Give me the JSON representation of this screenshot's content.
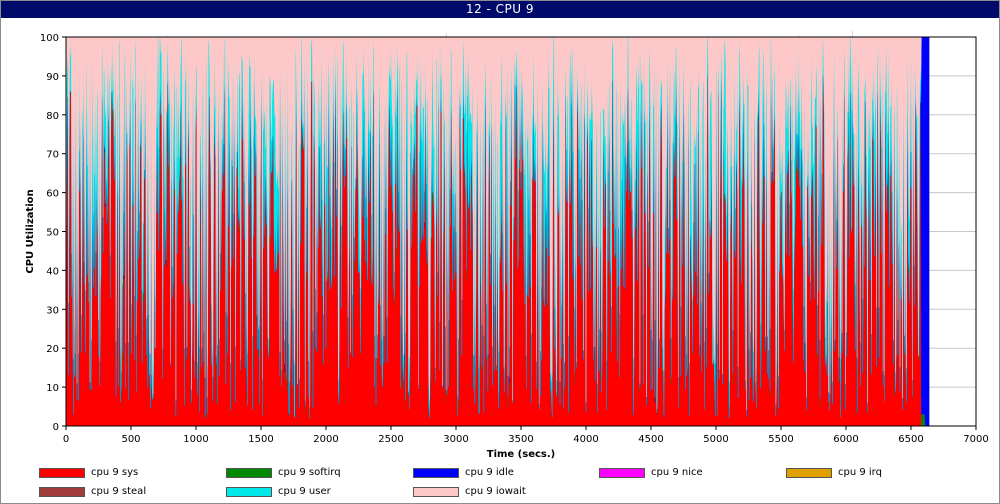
{
  "window": {
    "title": "12 - CPU 9"
  },
  "chart_data": {
    "type": "area",
    "stacked": true,
    "title": "12 - CPU 9",
    "xlabel": "Time (secs.)",
    "ylabel": "CPU Utilization",
    "xlim": [
      0,
      7000
    ],
    "ylim": [
      0,
      100
    ],
    "x_ticks": [
      0,
      500,
      1000,
      1500,
      2000,
      2500,
      3000,
      3500,
      4000,
      4500,
      5000,
      5500,
      6000,
      6500,
      7000
    ],
    "y_ticks": [
      0,
      10,
      20,
      30,
      40,
      50,
      60,
      70,
      80,
      90,
      100
    ],
    "grid": {
      "horizontal": true,
      "vertical": false
    },
    "legend_position": "bottom",
    "data_end_x": 6640,
    "series": [
      {
        "name": "cpu 9 sys",
        "color": "#ff0000",
        "typical_range": [
          10,
          90
        ]
      },
      {
        "name": "cpu 9 softirq",
        "color": "#008800",
        "typical_range": [
          0,
          3
        ]
      },
      {
        "name": "cpu 9 idle",
        "color": "#0000ff",
        "typical_range": [
          0,
          1
        ],
        "tail_value": 100,
        "tail_start_x": 6580
      },
      {
        "name": "cpu 9 nice",
        "color": "#ff00ff",
        "typical_range": [
          0,
          0
        ]
      },
      {
        "name": "cpu 9 irq",
        "color": "#e0a000",
        "typical_range": [
          0,
          0
        ]
      },
      {
        "name": "cpu 9 steal",
        "color": "#a03c3c",
        "typical_range": [
          0,
          0
        ]
      },
      {
        "name": "cpu 9 user",
        "color": "#00e8e8",
        "typical_range": [
          0,
          60
        ]
      },
      {
        "name": "cpu 9 iowait",
        "color": "#ffc8c8",
        "typical_range": [
          0,
          100
        ]
      }
    ]
  }
}
